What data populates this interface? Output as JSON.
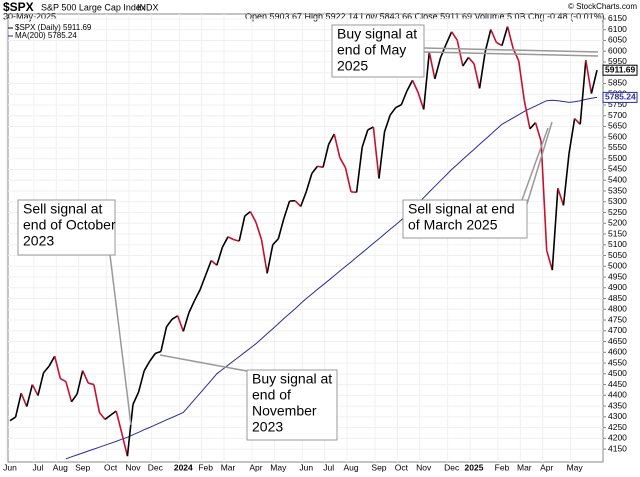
{
  "chart_data": {
    "type": "line",
    "header": {
      "symbol": "$SPX",
      "name": "S&P 500 Large Cap Index",
      "exchange": "INDX",
      "date": "30-May-2025",
      "quote": "Open 5903.67 High 5922.14 Low 5843.66 Close 5911.69 Volume 5.0B Chg -0.48 (-0.01%)",
      "credit": "© StockCharts.com"
    },
    "categories": [
      "Jun",
      null,
      null,
      null,
      null,
      "Jul",
      null,
      null,
      null,
      "Aug",
      null,
      null,
      null,
      "Sep",
      null,
      null,
      null,
      null,
      "Oct",
      null,
      null,
      null,
      "Nov",
      null,
      null,
      null,
      "Dec",
      null,
      null,
      null,
      null,
      "2024",
      null,
      null,
      null,
      "Feb",
      null,
      null,
      null,
      "Mar",
      null,
      null,
      null,
      null,
      "Apr",
      null,
      null,
      null,
      "May",
      null,
      null,
      null,
      null,
      "Jun",
      null,
      null,
      null,
      "Jul",
      null,
      null,
      null,
      "Aug",
      null,
      null,
      null,
      null,
      "Sep",
      null,
      null,
      null,
      "Oct",
      null,
      null,
      null,
      "Nov",
      null,
      null,
      null,
      null,
      "Dec",
      null,
      null,
      null,
      "2025",
      null,
      null,
      null,
      null,
      "Feb",
      null,
      null,
      null,
      "Mar",
      null,
      null,
      null,
      "Apr",
      null,
      null,
      null,
      null,
      "May",
      null,
      null,
      null,
      null
    ],
    "series": [
      {
        "name": "$SPX (Daily) 5911.69",
        "color": "#000000",
        "down_color": "#c8102e",
        "last_label": "5911.69",
        "values": [
          4282,
          4299,
          4410,
          4348,
          4450,
          4399,
          4505,
          4536,
          4582,
          4478,
          4464,
          4370,
          4406,
          4515,
          4457,
          4450,
          4320,
          4288,
          4308,
          4327,
          4224,
          4117,
          4358,
          4415,
          4514,
          4559,
          4595,
          4604,
          4719,
          4754,
          4770,
          4697,
          4784,
          4840,
          4891,
          4959,
          5027,
          5005,
          5089,
          5137,
          5124,
          5117,
          5234,
          5254,
          5204,
          5123,
          4967,
          5100,
          5128,
          5223,
          5303,
          5305,
          5278,
          5347,
          5432,
          5465,
          5460,
          5567,
          5615,
          5505,
          5459,
          5346,
          5344,
          5554,
          5634,
          5648,
          5408,
          5626,
          5703,
          5738,
          5751,
          5815,
          5865,
          5808,
          5729,
          5996,
          5871,
          5969,
          6032,
          6090,
          6051,
          5931,
          5971,
          5942,
          5827,
          5997,
          6101,
          6041,
          6026,
          6115,
          6013,
          5955,
          5770,
          5639,
          5668,
          5581,
          5074,
          4982,
          5363,
          5283,
          5525,
          5687,
          5660,
          5958,
          5803,
          5911.69
        ]
      },
      {
        "name": "MA(200) 5785.24",
        "color": "#2a2aa0",
        "last_label": "5785.24",
        "values": [
          null,
          null,
          null,
          null,
          null,
          null,
          null,
          null,
          null,
          null,
          4105,
          4114,
          4123,
          4132,
          4141,
          4150,
          4159,
          4168,
          4177,
          4186,
          4196,
          4205,
          4217,
          4228,
          4240,
          4251,
          4263,
          4274,
          4286,
          4297,
          4309,
          4320,
          4350,
          4380,
          4410,
          4440,
          4470,
          4500,
          4520,
          4540,
          4560,
          4580,
          4600,
          4620,
          4640,
          4663,
          4687,
          4710,
          4733,
          4757,
          4780,
          4803,
          4827,
          4850,
          4871,
          4893,
          4914,
          4935,
          4956,
          4978,
          4999,
          5020,
          5042,
          5063,
          5085,
          5107,
          5128,
          5150,
          5172,
          5193,
          5215,
          5241,
          5267,
          5293,
          5319,
          5346,
          5372,
          5398,
          5424,
          5450,
          5473,
          5497,
          5520,
          5543,
          5567,
          5590,
          5613,
          5637,
          5660,
          5675,
          5690,
          5705,
          5720,
          5733,
          5745,
          5758,
          5770,
          5772,
          5770,
          5766,
          5762,
          5765,
          5770,
          5776,
          5781,
          5785.24
        ]
      }
    ],
    "ylim": [
      4090,
      6173
    ],
    "yticks": [
      4150,
      4200,
      4250,
      4300,
      4350,
      4400,
      4450,
      4500,
      4550,
      4600,
      4650,
      4700,
      4750,
      4800,
      4850,
      4900,
      4950,
      5000,
      5050,
      5100,
      5150,
      5200,
      5250,
      5300,
      5350,
      5400,
      5450,
      5500,
      5550,
      5600,
      5650,
      5700,
      5750,
      5800,
      5850,
      5900,
      5950,
      6000,
      6050,
      6100,
      6150
    ],
    "grid": true,
    "annotations": [
      {
        "lines": [
          "Buy signal at",
          "end of May",
          "2025"
        ]
      },
      {
        "lines": [
          "Sell signal at end",
          "of March 2025"
        ]
      },
      {
        "lines": [
          "Sell signal at",
          "end of October",
          "2023"
        ]
      },
      {
        "lines": [
          "Buy signal at",
          "end of",
          "November",
          "2023"
        ]
      }
    ]
  }
}
